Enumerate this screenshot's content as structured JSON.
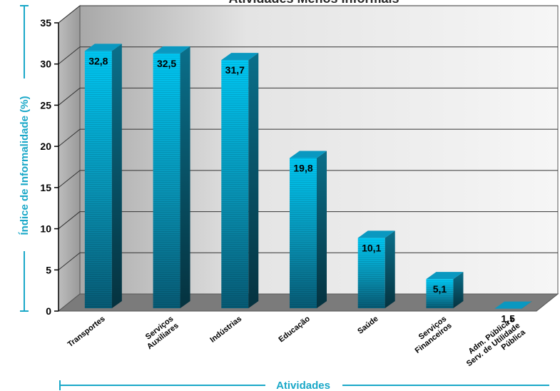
{
  "chart_data": {
    "type": "bar",
    "title": "Atividades Menos Informais",
    "xlabel": "Atividades",
    "ylabel": "Índice de Informalidade (%)",
    "ylim": [
      0,
      35
    ],
    "yticks": [
      "0",
      "5",
      "10",
      "15",
      "20",
      "25",
      "30",
      "35"
    ],
    "grid": true,
    "categories": [
      [
        "Transportes"
      ],
      [
        "Serviços",
        "Auxiliares"
      ],
      [
        "Indústrias"
      ],
      [
        "Educação"
      ],
      [
        "Saúde"
      ],
      [
        "Serviços",
        "Financeiros"
      ],
      [
        "Adm. Pública e",
        "Serv. de Utilidade",
        "Pública"
      ]
    ],
    "values": [
      32.8,
      32.5,
      31.7,
      19.8,
      10.1,
      5.1,
      1.5
    ],
    "value_labels": [
      "32,8",
      "32,5",
      "31,7",
      "19,8",
      "10,1",
      "5,1",
      "1,5"
    ],
    "colors": {
      "bar": "#1ab8e0",
      "accent": "#1aa8c8",
      "floor": "#7a7a7a",
      "wall": "#d8d8d8"
    }
  }
}
